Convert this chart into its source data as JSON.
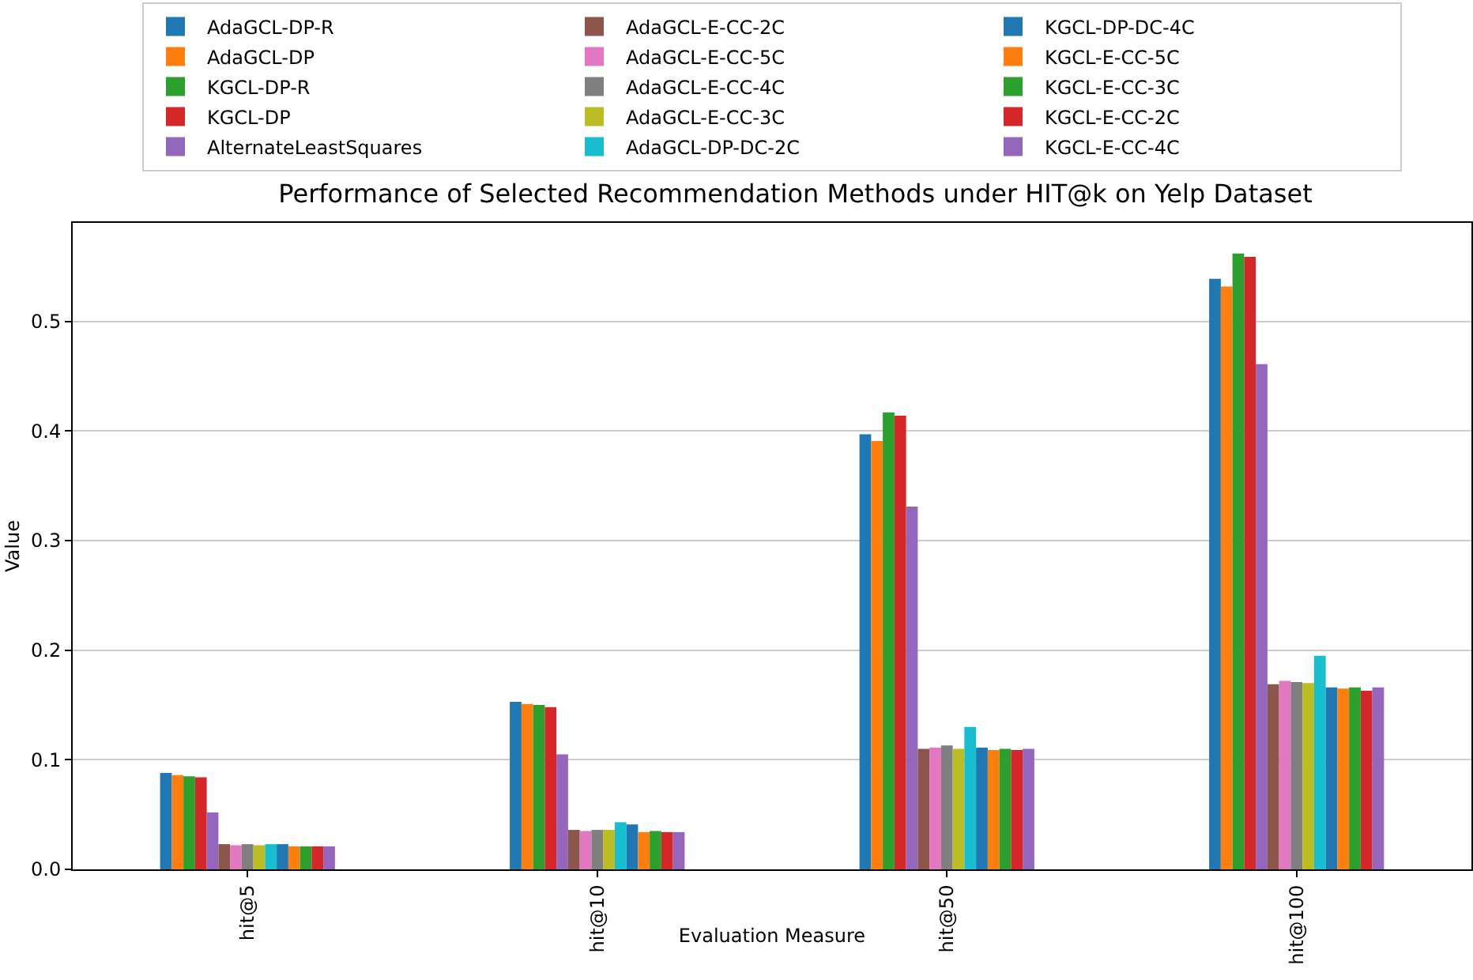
{
  "chart_data": {
    "type": "bar",
    "title": "Performance of Selected Recommendation Methods under HIT@k on Yelp Dataset",
    "xlabel": "Evaluation Measure",
    "ylabel": "Value",
    "categories": [
      "hit@5",
      "hit@10",
      "hit@50",
      "hit@100"
    ],
    "series": [
      {
        "name": "AdaGCL-DP-R",
        "color": "#1f77b4",
        "values": [
          0.088,
          0.153,
          0.397,
          0.539
        ]
      },
      {
        "name": "AdaGCL-DP",
        "color": "#ff7f0e",
        "values": [
          0.086,
          0.151,
          0.391,
          0.532
        ]
      },
      {
        "name": "KGCL-DP-R",
        "color": "#2ca02c",
        "values": [
          0.085,
          0.15,
          0.417,
          0.562
        ]
      },
      {
        "name": "KGCL-DP",
        "color": "#d62728",
        "values": [
          0.084,
          0.148,
          0.414,
          0.559
        ]
      },
      {
        "name": "AlternateLeastSquares",
        "color": "#9467bd",
        "values": [
          0.052,
          0.105,
          0.331,
          0.461
        ]
      },
      {
        "name": "AdaGCL-E-CC-2C",
        "color": "#8c564b",
        "values": [
          0.023,
          0.036,
          0.11,
          0.169
        ]
      },
      {
        "name": "AdaGCL-E-CC-5C",
        "color": "#e377c2",
        "values": [
          0.022,
          0.035,
          0.111,
          0.172
        ]
      },
      {
        "name": "AdaGCL-E-CC-4C",
        "color": "#7f7f7f",
        "values": [
          0.023,
          0.036,
          0.113,
          0.171
        ]
      },
      {
        "name": "AdaGCL-E-CC-3C",
        "color": "#bcbd22",
        "values": [
          0.022,
          0.036,
          0.11,
          0.17
        ]
      },
      {
        "name": "AdaGCL-DP-DC-2C",
        "color": "#17becf",
        "values": [
          0.023,
          0.043,
          0.13,
          0.195
        ]
      },
      {
        "name": "KGCL-DP-DC-4C",
        "color": "#1f77b4",
        "values": [
          0.023,
          0.041,
          0.111,
          0.166
        ]
      },
      {
        "name": "KGCL-E-CC-5C",
        "color": "#ff7f0e",
        "values": [
          0.021,
          0.034,
          0.109,
          0.165
        ]
      },
      {
        "name": "KGCL-E-CC-3C",
        "color": "#2ca02c",
        "values": [
          0.021,
          0.035,
          0.11,
          0.166
        ]
      },
      {
        "name": "KGCL-E-CC-2C",
        "color": "#d62728",
        "values": [
          0.021,
          0.034,
          0.109,
          0.163
        ]
      },
      {
        "name": "KGCL-E-CC-4C",
        "color": "#9467bd",
        "values": [
          0.021,
          0.034,
          0.11,
          0.166
        ]
      }
    ],
    "ylim": [
      0,
      0.59
    ],
    "yticks": [
      {
        "value": 0,
        "label": "0.0"
      },
      0.1,
      0.2,
      0.3,
      0.4,
      0.5
    ],
    "grid": "y",
    "legend": "top"
  }
}
